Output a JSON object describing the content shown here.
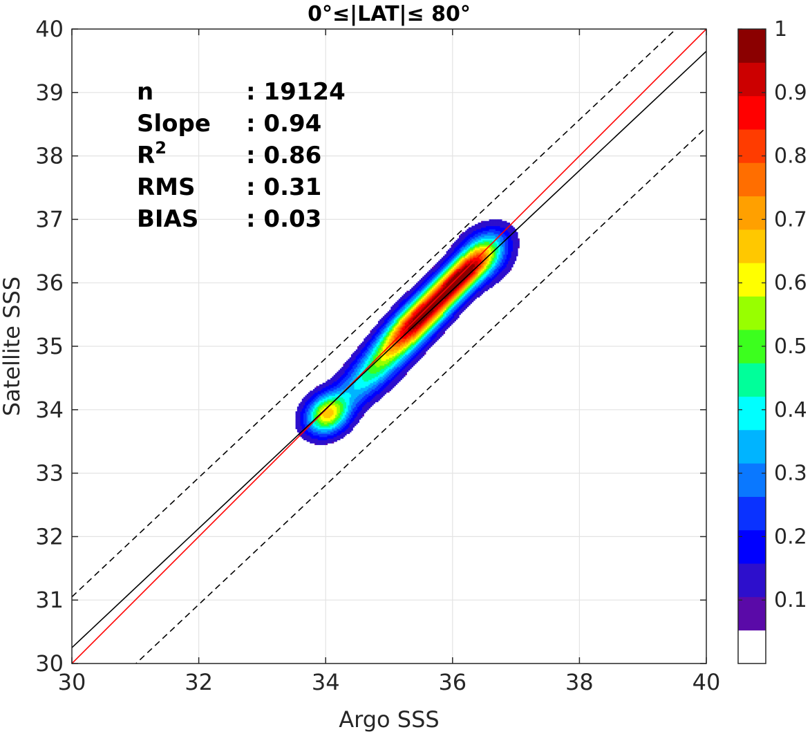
{
  "chart_data": {
    "type": "contour",
    "title": "0°≤|LAT|≤ 80°",
    "xlabel": "Argo SSS",
    "ylabel": "Satellite SSS",
    "xlim": [
      30,
      40
    ],
    "ylim": [
      30,
      40
    ],
    "xticks": [
      "30",
      "32",
      "34",
      "36",
      "38",
      "40"
    ],
    "yticks": [
      "30",
      "31",
      "32",
      "33",
      "34",
      "35",
      "36",
      "37",
      "38",
      "39",
      "40"
    ],
    "grid": true,
    "stats": [
      {
        "label": "n",
        "value": ": 19124"
      },
      {
        "label": "Slope",
        "value": ": 0.94"
      },
      {
        "label": "R",
        "sup": "2",
        "value": ": 0.86"
      },
      {
        "label": "RMS",
        "value": ": 0.31"
      },
      {
        "label": "BIAS",
        "value": ": 0.03"
      }
    ],
    "lines": [
      {
        "kind": "one-to-one",
        "color": "#ff0000",
        "slope": 1.0,
        "intercept": 0.0
      },
      {
        "kind": "regression",
        "color": "#000000",
        "slope": 0.94,
        "intercept": 2.05
      },
      {
        "kind": "regression-offset-upper",
        "color": "#000000",
        "dash": true,
        "slope": 0.94,
        "intercept": 2.85
      },
      {
        "kind": "regression-offset-lower",
        "color": "#000000",
        "dash": true,
        "slope": 0.94,
        "intercept": 0.85
      }
    ],
    "density_peaks": [
      {
        "x": 35.5,
        "y": 35.45,
        "value": 0.95
      },
      {
        "x": 36.2,
        "y": 36.15,
        "value": 0.9
      },
      {
        "x": 34.02,
        "y": 33.92,
        "value": 0.55
      }
    ],
    "colorbar": {
      "range": [
        0,
        1
      ],
      "ticks": [
        "0.1",
        "0.2",
        "0.3",
        "0.4",
        "0.5",
        "0.6",
        "0.7",
        "0.8",
        "0.9",
        "1"
      ],
      "colors": [
        "#ffffff",
        "#5a0aa8",
        "#2d0fcc",
        "#0000ff",
        "#0a32ff",
        "#0a78ff",
        "#00b4ff",
        "#00ffff",
        "#00ff9a",
        "#3cff1e",
        "#98ff00",
        "#ffff00",
        "#ffc800",
        "#ffa000",
        "#ff6e00",
        "#ff3c00",
        "#ff0000",
        "#cc0000",
        "#8b0000"
      ]
    }
  }
}
